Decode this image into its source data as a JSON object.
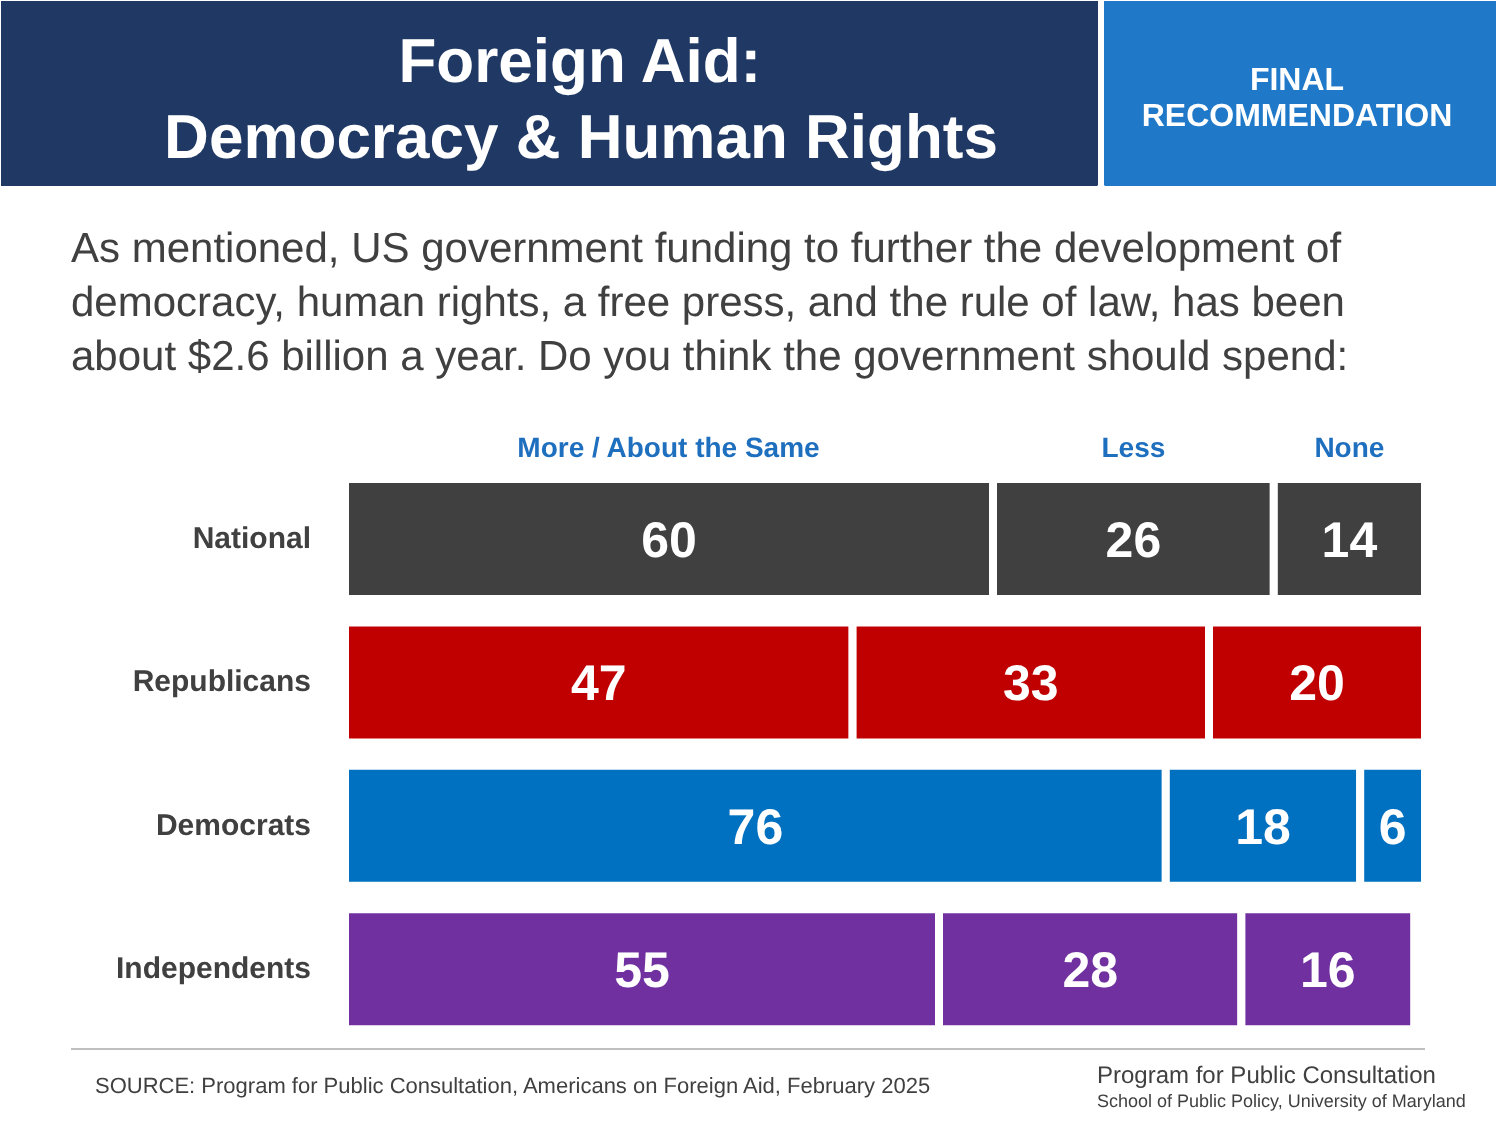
{
  "chart_data": {
    "type": "bar",
    "orientation": "horizontal",
    "stacked": true,
    "data_labels": true,
    "tick_labels": false,
    "grid": false,
    "title": "Foreign Aid:\nDemocracy & Human Rights",
    "subtitle": "As mentioned, US government funding to further the development of\ndemocracy, human rights, a free press, and the rule of law, has been\nabout $2.6 billion a year. Do you think the government should spend:",
    "categories": [
      "National",
      "Republicans",
      "Democrats",
      "Independents"
    ],
    "xlim": [
      0,
      100
    ],
    "series": [
      {
        "name": "More / About the Same",
        "colors": [
          "#404040",
          "#c00000",
          "#0070c0",
          "#7030a0"
        ],
        "values": [
          60,
          47,
          76,
          55
        ]
      },
      {
        "name": "Less",
        "colors": [
          "#404040",
          "#c00000",
          "#0070c0",
          "#7030a0"
        ],
        "values": [
          26,
          33,
          18,
          28
        ]
      },
      {
        "name": "None",
        "colors": [
          "#404040",
          "#c00000",
          "#0070c0",
          "#7030a0"
        ],
        "values": [
          14,
          20,
          6,
          16
        ]
      }
    ],
    "annotations": [
      "FINAL\nRECOMMENDATION",
      "SOURCE: Program for Public Consultation, Americans on Foreign Aid, February 2025",
      "Program for Public Consultation\nSchool of Public Policy, University of Maryland"
    ]
  }
}
